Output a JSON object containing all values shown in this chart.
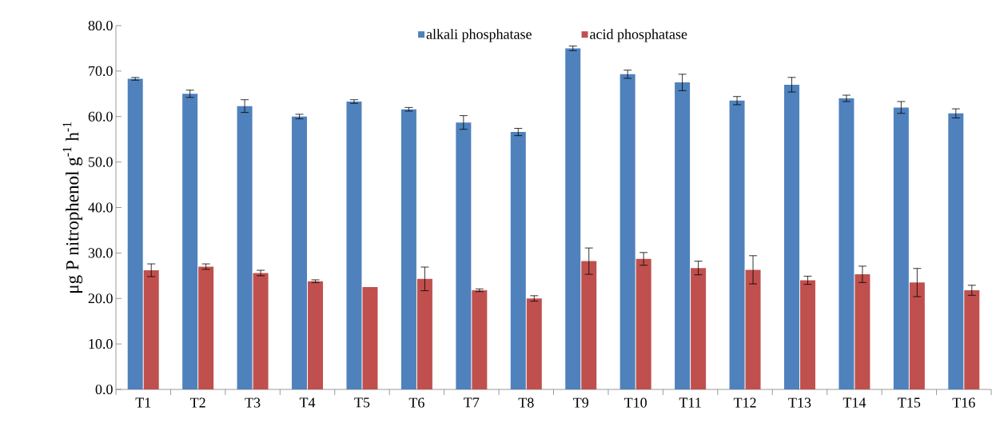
{
  "chart_data": {
    "type": "bar",
    "ylabel": "μg P nitrophenol g$^{-1}$ h$^{-1}$",
    "categories": [
      "T1",
      "T2",
      "T3",
      "T4",
      "T5",
      "T6",
      "T7",
      "T8",
      "T9",
      "T10",
      "T11",
      "T12",
      "T13",
      "T14",
      "T15",
      "T16"
    ],
    "series": [
      {
        "name": "alkali phosphatase",
        "color": "#4f81bd",
        "values": [
          68.3,
          65.0,
          62.3,
          60.0,
          63.3,
          61.6,
          58.7,
          56.6,
          75.0,
          69.3,
          67.5,
          63.5,
          67.0,
          64.0,
          62.0,
          60.7
        ],
        "errors": [
          0.3,
          0.8,
          1.4,
          0.5,
          0.4,
          0.4,
          1.5,
          0.8,
          0.5,
          0.9,
          1.8,
          0.9,
          1.6,
          0.7,
          1.3,
          1.0
        ]
      },
      {
        "name": "acid phosphatase",
        "color": "#c0504d",
        "values": [
          26.2,
          27.0,
          25.6,
          23.8,
          22.5,
          24.3,
          21.8,
          20.0,
          28.2,
          28.7,
          26.7,
          26.3,
          24.0,
          25.3,
          23.5,
          21.8
        ],
        "errors": [
          1.4,
          0.6,
          0.6,
          0.3,
          null,
          2.6,
          0.3,
          0.6,
          2.9,
          1.4,
          1.5,
          3.1,
          0.9,
          1.8,
          3.1,
          1.1
        ]
      }
    ],
    "ylim": [
      0,
      80
    ],
    "yticks": [
      {
        "value": 0,
        "label": "0.0"
      },
      {
        "value": 10,
        "label": "10.0"
      },
      {
        "value": 20,
        "label": "20.0"
      },
      {
        "value": 30,
        "label": "30.0"
      },
      {
        "value": 40,
        "label": "40.0"
      },
      {
        "value": 50,
        "label": "50.0"
      },
      {
        "value": 60,
        "label": "60.0"
      },
      {
        "value": 70,
        "label": "70.0"
      },
      {
        "value": 80,
        "label": "80.0"
      }
    ],
    "legend": "top",
    "grid": false
  }
}
